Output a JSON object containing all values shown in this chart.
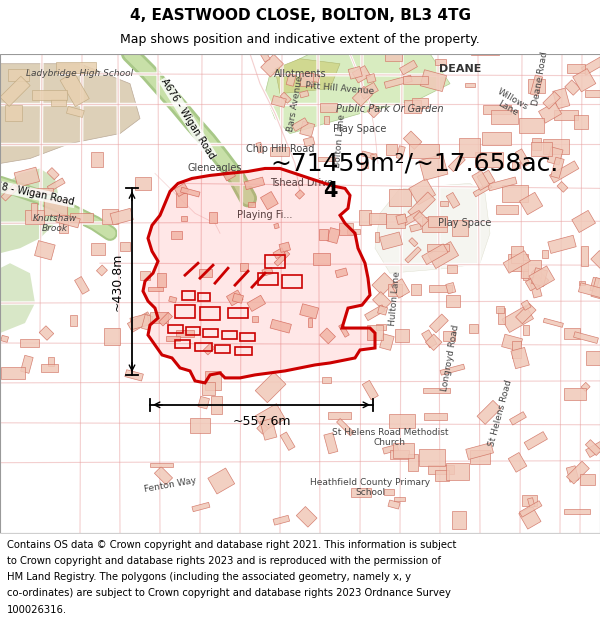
{
  "title_line1": "4, EASTWOOD CLOSE, BOLTON, BL3 4TG",
  "title_line2": "Map shows position and indicative extent of the property.",
  "title_fontsize": 11,
  "subtitle_fontsize": 9,
  "area_text": "~71459m²/~17.658ac.",
  "area_fontsize": 18,
  "width_label": "~557.6m",
  "height_label": "~430.8m",
  "property_label": "4",
  "footer_text": "Contains OS data © Crown copyright and database right 2021. This information is subject to Crown copyright and database rights 2023 and is reproduced with the permission of HM Land Registry. The polygons (including the associated geometry, namely x, y co-ordinates) are subject to Crown copyright and database rights 2023 Ordnance Survey 100026316.",
  "footer_fontsize": 7.2,
  "map_bg_color": "#f9f4ef",
  "street_color": "#e8a0a0",
  "building_fill": "#f0c8b8",
  "building_edge": "#d07060",
  "green_color": "#c8ddb0",
  "park_color": "#d8ecc0",
  "road_green": "#8ab870",
  "road_outline": "#a0c880",
  "title_bg": "#ffffff",
  "footer_bg": "#ffffff",
  "property_outline_color": "#cc0000",
  "dim_color": "#000000",
  "dim_fontsize": 9,
  "label_fontsize": 7
}
